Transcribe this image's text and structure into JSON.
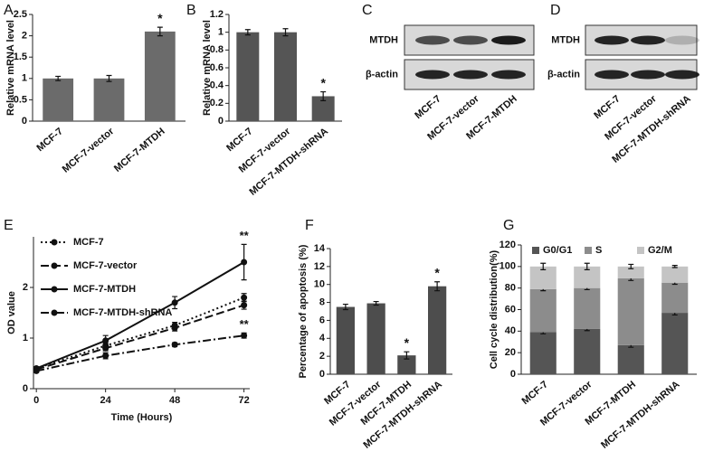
{
  "chart_data": [
    {
      "type": "bar",
      "panel_label": "A",
      "y_label": "Relative mRNA level",
      "categories": [
        "MCF-7",
        "MCF-7-vector",
        "MCF-7-MTDH"
      ],
      "values": [
        1,
        1,
        2.1
      ],
      "errors": [
        0.05,
        0.07,
        0.1
      ],
      "color": "#6b6b6b",
      "ylim": [
        0,
        2.5
      ],
      "yticks": [
        0,
        0.5,
        1,
        1.5,
        2,
        2.5
      ],
      "annotations": [
        {
          "text": "*",
          "category": "MCF-7-MTDH"
        }
      ]
    },
    {
      "type": "bar",
      "panel_label": "B",
      "y_label": "Relative mRNA level",
      "categories": [
        "MCF-7",
        "MCF-7-vector",
        "MCF-7-MTDH-shRNA"
      ],
      "values": [
        1,
        1,
        0.28
      ],
      "errors": [
        0.03,
        0.04,
        0.05
      ],
      "color": "#555555",
      "ylim": [
        0,
        1.2
      ],
      "yticks": [
        0,
        0.2,
        0.4,
        0.6,
        0.8,
        1,
        1.2
      ],
      "annotations": [
        {
          "text": "*",
          "category": "MCF-7-MTDH-shRNA"
        }
      ]
    },
    {
      "type": "line",
      "panel_label": "E",
      "x_label": "Time (Hours)",
      "y_label": "OD value",
      "x": [
        0,
        24,
        48,
        72
      ],
      "xlim": [
        -1,
        74
      ],
      "xticks": [
        0,
        24,
        48,
        72
      ],
      "ylim": [
        0,
        3
      ],
      "yticks": [
        0,
        1,
        2
      ],
      "series": [
        {
          "name": "MCF-7",
          "color": "#111111",
          "line_style": "dotted",
          "values": [
            0.4,
            0.85,
            1.25,
            1.8
          ],
          "errors": [
            0.03,
            0.05,
            0.06,
            0.08
          ]
        },
        {
          "name": "MCF-7-vector",
          "color": "#111111",
          "line_style": "dashed",
          "values": [
            0.38,
            0.8,
            1.2,
            1.65
          ],
          "errors": [
            0.03,
            0.05,
            0.06,
            0.08
          ]
        },
        {
          "name": "MCF-7-MTDH",
          "color": "#111111",
          "line_style": "solid",
          "values": [
            0.4,
            0.95,
            1.7,
            2.5
          ],
          "errors": [
            0.03,
            0.1,
            0.12,
            0.35
          ]
        },
        {
          "name": "MCF-7-MTDH-shRNA",
          "color": "#111111",
          "line_style": "dashdot",
          "values": [
            0.35,
            0.65,
            0.87,
            1.05
          ],
          "errors": [
            0.03,
            0.06,
            0.04,
            0.05
          ]
        }
      ],
      "annotations": [
        {
          "text": "**",
          "series": "MCF-7-MTDH",
          "x": 72
        },
        {
          "text": "**",
          "series": "MCF-7-MTDH-shRNA",
          "x": 72
        }
      ]
    },
    {
      "type": "bar",
      "panel_label": "F",
      "y_label": "Percentage of apoptosis (%)",
      "categories": [
        "MCF-7",
        "MCF-7-vector",
        "MCF-7-MTDH",
        "MCF-7-MTDH-shRNA"
      ],
      "values": [
        7.5,
        7.9,
        2.1,
        9.8
      ],
      "errors": [
        0.3,
        0.2,
        0.4,
        0.5
      ],
      "color": "#4d4d4d",
      "ylim": [
        0,
        14
      ],
      "yticks": [
        0,
        2,
        4,
        6,
        8,
        10,
        12,
        14
      ],
      "annotations": [
        {
          "text": "*",
          "category": "MCF-7-MTDH"
        },
        {
          "text": "*",
          "category": "MCF-7-MTDH-shRNA"
        }
      ]
    },
    {
      "type": "stacked_bar",
      "panel_label": "G",
      "y_label": "Cell cycle distribution(%)",
      "categories": [
        "MCF-7",
        "MCF-7-vector",
        "MCF-7-MTDH",
        "MCF-7-MTDH-shRNA"
      ],
      "ylim": [
        0,
        120
      ],
      "yticks": [
        0,
        20,
        40,
        60,
        80,
        100,
        120
      ],
      "series": [
        {
          "name": "G0/G1",
          "color": "#555555",
          "values": [
            39,
            42,
            27,
            57
          ],
          "errors": [
            1.5,
            1.5,
            2,
            2
          ]
        },
        {
          "name": "S",
          "color": "#8c8c8c",
          "values": [
            40,
            38,
            62,
            28
          ],
          "errors": [
            1.5,
            1.5,
            2,
            1.5
          ]
        },
        {
          "name": "G2/M",
          "color": "#c4c4c4",
          "values": [
            21,
            20,
            11,
            15
          ],
          "errors": [
            3,
            3,
            2,
            1
          ]
        }
      ]
    }
  ],
  "blots": [
    {
      "panel_label": "C",
      "rows": [
        "MTDH",
        "β-actin"
      ],
      "lanes": [
        "MCF-7",
        "MCF-7-vector",
        "MCF-7-MTDH"
      ]
    },
    {
      "panel_label": "D",
      "rows": [
        "MTDH",
        "β-actin"
      ],
      "lanes": [
        "MCF-7",
        "MCF-7-vector",
        "MCF-7-MTDH-shRNA"
      ]
    }
  ]
}
